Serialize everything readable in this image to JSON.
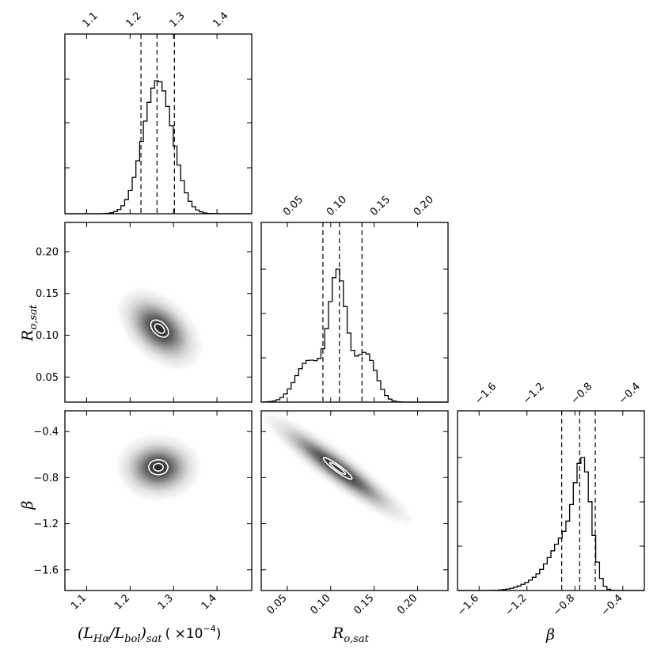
{
  "chart_data": {
    "type": "corner",
    "parameters": [
      {
        "id": "lha",
        "range": [
          1.05,
          1.48
        ],
        "ticks": [
          1.1,
          1.2,
          1.3,
          1.4
        ],
        "tick_labels": [
          "1.1",
          "1.2",
          "1.3",
          "1.4"
        ],
        "quantiles": [
          1.225,
          1.262,
          1.302
        ]
      },
      {
        "id": "ro",
        "range": [
          0.02,
          0.235
        ],
        "ticks": [
          0.05,
          0.1,
          0.15,
          0.2
        ],
        "tick_labels": [
          "0.05",
          "0.10",
          "0.15",
          "0.20"
        ],
        "quantiles": [
          0.091,
          0.11,
          0.136
        ]
      },
      {
        "id": "beta",
        "range": [
          -1.78,
          -0.22
        ],
        "ticks": [
          -1.6,
          -1.2,
          -0.8,
          -0.4
        ],
        "tick_labels": [
          "−1.6",
          "−1.2",
          "−0.8",
          "−0.4"
        ],
        "quantiles": [
          -0.91,
          -0.76,
          -0.63
        ]
      }
    ],
    "marginals": {
      "lha": {
        "mean": 1.264,
        "sd": 0.034,
        "peak": 0.74
      },
      "ro": {
        "components": [
          {
            "mean": 0.108,
            "sd": 0.01,
            "w": 0.68
          },
          {
            "mean": 0.14,
            "sd": 0.012,
            "w": 0.26
          },
          {
            "mean": 0.075,
            "sd": 0.015,
            "w": 0.22
          }
        ],
        "peak": 0.74
      },
      "beta": {
        "components": [
          {
            "mean": -0.73,
            "sd": 0.07,
            "w": 0.72
          },
          {
            "mean": -0.88,
            "sd": 0.11,
            "w": 0.28
          },
          {
            "mean": -1.05,
            "sd": 0.15,
            "w": 0.08
          }
        ],
        "peak": 0.74
      }
    },
    "joint_2d": [
      {
        "x": "lha",
        "y": "ro",
        "center": [
          1.268,
          0.108
        ],
        "sd": [
          0.034,
          0.017
        ],
        "rho": -0.45,
        "contour_radii": [
          0.33,
          0.6
        ]
      },
      {
        "x": "lha",
        "y": "beta",
        "center": [
          1.265,
          -0.71
        ],
        "sd": [
          0.034,
          0.1
        ],
        "rho": 0.0,
        "contour_radii": [
          0.33,
          0.65
        ]
      },
      {
        "x": "ro",
        "y": "beta",
        "center": [
          0.108,
          -0.72
        ],
        "sd": [
          0.03,
          0.17
        ],
        "rho": -0.93,
        "contour_radii": [
          0.3,
          0.55
        ]
      }
    ]
  },
  "labels": {
    "x_lha": "(L",
    "x_lha_sub1": "Hα",
    "x_lha_mid": "/L",
    "x_lha_sub2": "bol",
    "x_lha_close": ")",
    "x_lha_sub3": "sat",
    "x_lha_scale": "( ×10",
    "x_lha_exp": "−4",
    "x_lha_end": ")",
    "ro_main": "R",
    "ro_sub": "o,sat",
    "beta": "β"
  }
}
